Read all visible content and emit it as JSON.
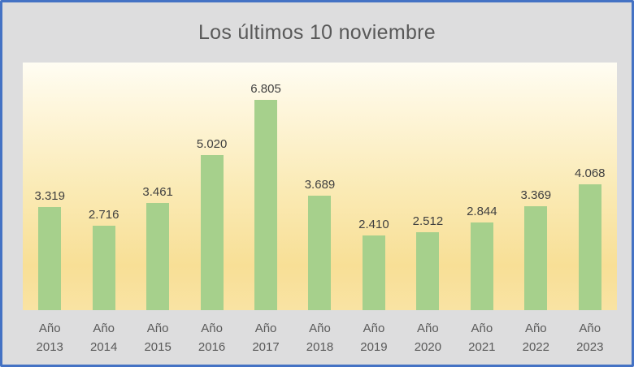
{
  "chart_data": {
    "type": "bar",
    "title": "Los últimos 10 noviembre",
    "category_prefix": "Año",
    "categories": [
      "2013",
      "2014",
      "2015",
      "2016",
      "2017",
      "2018",
      "2019",
      "2020",
      "2021",
      "2022",
      "2023"
    ],
    "values": [
      3319,
      2716,
      3461,
      5020,
      6805,
      3689,
      2410,
      2512,
      2844,
      3369,
      4068
    ],
    "value_labels": [
      "3.319",
      "2.716",
      "3.461",
      "5.020",
      "6.805",
      "3.689",
      "2.410",
      "2.512",
      "2.844",
      "3.369",
      "4.068"
    ],
    "xlabel": "",
    "ylabel": "",
    "ylim": [
      0,
      8000
    ],
    "grid": false,
    "legend": false,
    "colors": {
      "bar": "#A6D08C",
      "frame_border": "#4472C4",
      "chart_background": "#DDDDDE",
      "title_text": "#595959",
      "data_label_text": "#404040",
      "axis_label_text": "#595959"
    },
    "plot_gradient": [
      {
        "color": "#FFFDF3",
        "pos": 0
      },
      {
        "color": "#FEF6DC",
        "pos": 18
      },
      {
        "color": "#FAEAB4",
        "pos": 52
      },
      {
        "color": "#F8DF96",
        "pos": 82
      },
      {
        "color": "#F9E3A3",
        "pos": 100
      }
    ]
  }
}
